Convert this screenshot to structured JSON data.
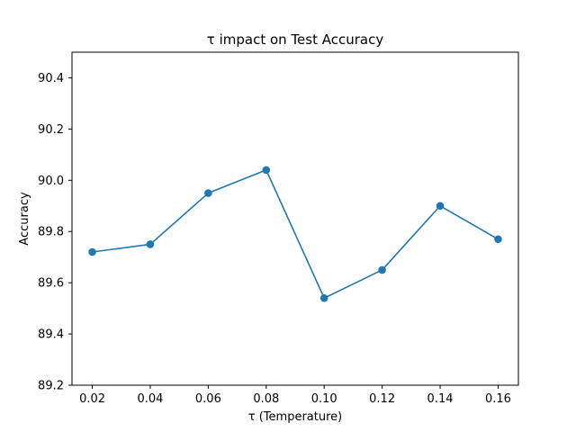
{
  "chart_data": {
    "type": "line",
    "title": "τ impact on Test Accuracy",
    "xlabel": "τ (Temperature)",
    "ylabel": "Accuracy",
    "x": [
      0.02,
      0.04,
      0.06,
      0.08,
      0.1,
      0.12,
      0.14,
      0.16
    ],
    "x_tick_values": [
      0.02,
      0.04,
      0.06,
      0.08,
      0.1,
      0.12,
      0.14,
      0.16
    ],
    "x_tick_labels": [
      "0.02",
      "0.04",
      "0.06",
      "0.08",
      "0.10",
      "0.12",
      "0.14",
      "0.16"
    ],
    "xlim": [
      0.013,
      0.167
    ],
    "ylim": [
      89.2,
      90.5
    ],
    "y_tick_values": [
      89.2,
      89.4,
      89.6,
      89.8,
      90.0,
      90.2,
      90.4
    ],
    "y_tick_labels": [
      "89.2",
      "89.4",
      "89.6",
      "89.8",
      "90.0",
      "90.2",
      "90.4"
    ],
    "series": [
      {
        "values": [
          89.72,
          89.75,
          89.95,
          90.04,
          89.54,
          89.65,
          89.9,
          89.77
        ],
        "color": "#1f77b4",
        "marker": "circle"
      }
    ],
    "grid": false,
    "legend": "none"
  }
}
